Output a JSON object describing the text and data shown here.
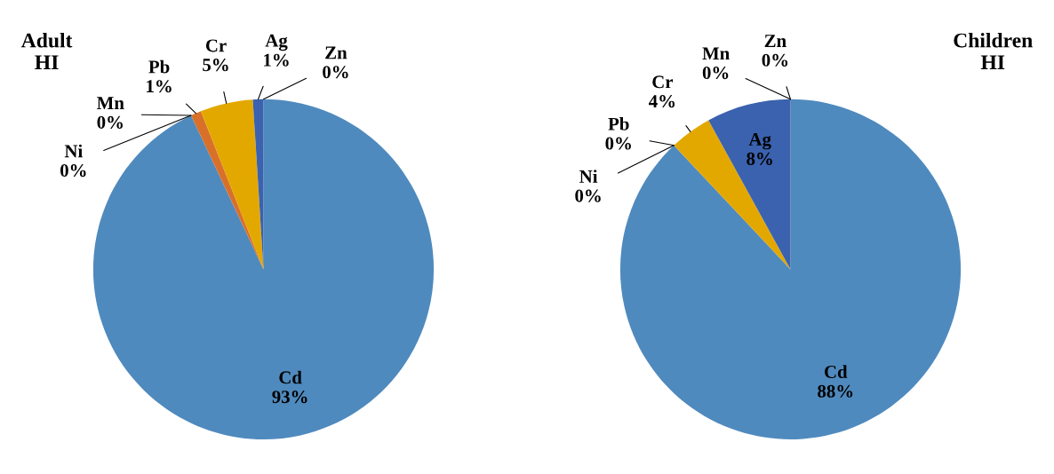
{
  "chart_data": [
    {
      "type": "pie",
      "title": "Adult\nHI",
      "categories": [
        "Cd",
        "Ni",
        "Mn",
        "Pb",
        "Cr",
        "Ag",
        "Zn"
      ],
      "values": [
        93,
        0,
        0,
        1,
        5,
        1,
        0
      ],
      "value_labels": [
        "93%",
        "0%",
        "0%",
        "1%",
        "5%",
        "1%",
        "0%"
      ],
      "colors": [
        "#4f8abe",
        "#9bbb59",
        "#8064a2",
        "#d8702a",
        "#e3a800",
        "#3a62ae",
        "#4bacc6"
      ]
    },
    {
      "type": "pie",
      "title": "Children\nHI",
      "categories": [
        "Cd",
        "Ni",
        "Pb",
        "Cr",
        "Ag",
        "Mn",
        "Zn"
      ],
      "values": [
        88,
        0,
        0,
        4,
        8,
        0,
        0
      ],
      "value_labels": [
        "88%",
        "0%",
        "0%",
        "4%",
        "8%",
        "0%",
        "0%"
      ],
      "colors": [
        "#4f8abe",
        "#9bbb59",
        "#d8702a",
        "#e3a800",
        "#3a62ae",
        "#8064a2",
        "#4bacc6"
      ]
    }
  ]
}
